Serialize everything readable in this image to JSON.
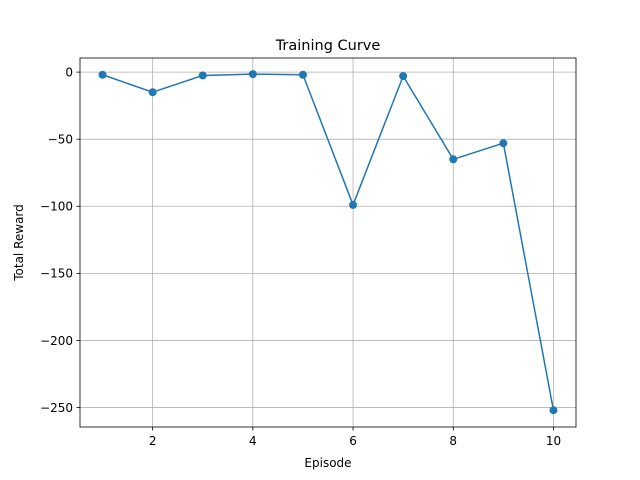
{
  "chart_data": {
    "type": "line",
    "title": "Training Curve",
    "xlabel": "Episode",
    "ylabel": "Total Reward",
    "x": [
      1,
      2,
      3,
      4,
      5,
      6,
      7,
      8,
      9,
      10
    ],
    "series": [
      {
        "values": [
          -2,
          -15,
          -2.5,
          -1.5,
          -2,
          -99,
          -3,
          -65,
          -53,
          -252
        ]
      }
    ],
    "xlim": [
      0.55,
      10.45
    ],
    "ylim": [
      -264.5,
      10.5
    ],
    "xticks": [
      2,
      4,
      6,
      8,
      10
    ],
    "xtick_labels": [
      "2",
      "4",
      "6",
      "8",
      "10"
    ],
    "yticks": [
      0,
      -50,
      -100,
      -150,
      -200,
      -250
    ],
    "ytick_labels": [
      "0",
      "−50",
      "−100",
      "−150",
      "−200",
      "−250"
    ],
    "grid": true,
    "line_color": "#1f77b4",
    "legend": "none"
  }
}
